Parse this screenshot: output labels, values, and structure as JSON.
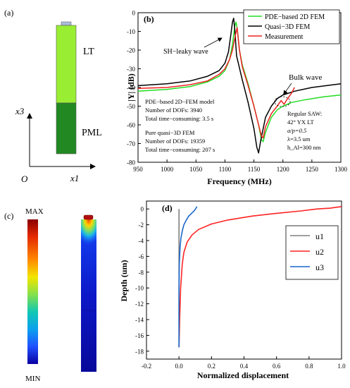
{
  "panel_a": {
    "label": "(a)",
    "layer_top": "LT",
    "layer_bottom": "PML",
    "axis_vertical": "x3",
    "axis_horizontal": "x1",
    "origin": "O",
    "colors": {
      "lt": "#99ee33",
      "pml": "#228822",
      "electrode": "#aabbdd"
    }
  },
  "panel_b": {
    "label": "(b)",
    "ylabel": "|Y| (dB)",
    "xlabel": "Frequency (MHz)",
    "annotation_sh": "SH−leaky wave",
    "annotation_bulk": "Bulk wave",
    "info_pde": [
      "PDE−based 2D−FEM model",
      "Number of DOFs: 3940",
      "Total time−consuming: 3.5 s"
    ],
    "info_q3d": [
      "Pure quasi−3D FEM",
      "Number of DOFs: 19359",
      "Total time−consuming: 207 s"
    ],
    "info_saw": [
      "Regular SAW:",
      "42° YX LT",
      "a/p=0.5",
      "λ=3.5 um",
      "h_Al=300 nm"
    ]
  },
  "panel_c": {
    "label": "(c)",
    "max_label": "MAX",
    "min_label": "MIN",
    "colorbar": [
      "#8b0000",
      "#e52a00",
      "#ff8a00",
      "#f2e600",
      "#84e04a",
      "#10c8b4",
      "#0aa0ee",
      "#2050ff",
      "#0a00a0"
    ]
  },
  "panel_d": {
    "label": "(d)"
  },
  "chart_data": [
    {
      "type": "line",
      "panel": "(b)",
      "xlabel": "Frequency (MHz)",
      "ylabel": "|Y| (dB)",
      "xlim": [
        950,
        1300
      ],
      "ylim": [
        -80,
        0
      ],
      "xticks": [
        950,
        1000,
        1050,
        1100,
        1150,
        1200,
        1250,
        1300
      ],
      "yticks": [
        -80,
        -70,
        -60,
        -50,
        -40,
        -30,
        -20,
        -10,
        0
      ],
      "legend_position": "top-right",
      "series": [
        {
          "name": "PDE−based 2D FEM",
          "color": "#22dd22",
          "x": [
            950,
            1000,
            1040,
            1070,
            1090,
            1100,
            1108,
            1113,
            1117,
            1119,
            1121,
            1125,
            1130,
            1140,
            1150,
            1158,
            1163,
            1166,
            1170,
            1180,
            1190,
            1200,
            1215,
            1240,
            1270,
            1300
          ],
          "y": [
            -42,
            -41,
            -39.5,
            -37,
            -34,
            -31,
            -25,
            -17,
            -7,
            -5,
            -8,
            -20,
            -28,
            -38,
            -50,
            -60,
            -68,
            -69,
            -64,
            -56,
            -52,
            -50,
            -48,
            -46.5,
            -45,
            -44
          ]
        },
        {
          "name": "Quasi−3D FEM",
          "color": "#000000",
          "x": [
            950,
            1000,
            1040,
            1070,
            1090,
            1100,
            1106,
            1110,
            1113,
            1115,
            1117,
            1120,
            1130,
            1140,
            1150,
            1155,
            1158,
            1162,
            1170,
            1180,
            1190,
            1200,
            1220,
            1250,
            1300
          ],
          "y": [
            -39,
            -38,
            -36.5,
            -34,
            -31,
            -27,
            -21,
            -12,
            -5,
            -3,
            -9,
            -23,
            -36,
            -48,
            -62,
            -72,
            -75,
            -68,
            -56,
            -50,
            -46,
            -44,
            -42,
            -40,
            -38
          ]
        },
        {
          "name": "Measurement",
          "color": "#ee2222",
          "x": [
            950,
            1000,
            1040,
            1070,
            1090,
            1100,
            1108,
            1113,
            1118,
            1121,
            1125,
            1130,
            1140,
            1150,
            1158,
            1163,
            1166,
            1170,
            1180,
            1190,
            1197,
            1202,
            1208,
            1215,
            1220
          ],
          "y": [
            -40.5,
            -40,
            -38.5,
            -36.5,
            -33,
            -30,
            -25,
            -20,
            -12,
            -8,
            -20,
            -29,
            -39,
            -50,
            -60,
            -66,
            -67,
            -61,
            -54,
            -50,
            -47,
            -49,
            -46,
            -43,
            -40
          ]
        }
      ]
    },
    {
      "type": "line",
      "panel": "(d)",
      "xlabel": "Normalized displacement",
      "ylabel": "Depth (um)",
      "xlim": [
        -0.2,
        1.0
      ],
      "ylim": [
        -19,
        1
      ],
      "xticks": [
        -0.2,
        0.0,
        0.2,
        0.4,
        0.6,
        0.8,
        1.0
      ],
      "yticks": [
        0,
        -2,
        -4,
        -6,
        -8,
        -10,
        -12,
        -14,
        -16,
        -18
      ],
      "legend_position": "right",
      "series": [
        {
          "name": "u1",
          "color": "#808080",
          "x": [
            0,
            0,
            0
          ],
          "y": [
            0,
            -8,
            -17.5
          ]
        },
        {
          "name": "u2",
          "color": "#ff2222",
          "x": [
            0.0,
            0.004,
            0.01,
            0.02,
            0.03,
            0.05,
            0.08,
            0.12,
            0.2,
            0.3,
            0.45,
            0.6,
            0.75,
            0.85,
            0.93,
            1.0
          ],
          "y": [
            -17.5,
            -14,
            -10,
            -7,
            -5.5,
            -4.2,
            -3.3,
            -2.6,
            -1.9,
            -1.4,
            -0.9,
            -0.55,
            -0.25,
            0.0,
            0.1,
            0.3
          ]
        },
        {
          "name": "u3",
          "color": "#1a66cc",
          "x": [
            0.0,
            0.0,
            0.002,
            0.006,
            0.012,
            0.02,
            0.03,
            0.045,
            0.06,
            0.08,
            0.095,
            0.105,
            0.11
          ],
          "y": [
            -17.5,
            -10,
            -7,
            -5,
            -3.7,
            -2.8,
            -2.0,
            -1.4,
            -0.9,
            -0.5,
            -0.2,
            0.1,
            0.3
          ]
        }
      ]
    }
  ]
}
